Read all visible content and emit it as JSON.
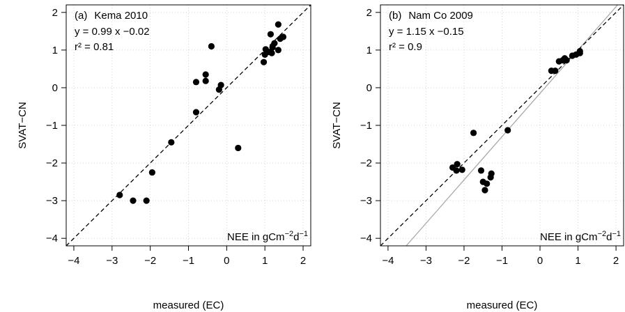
{
  "chart_data": [
    {
      "type": "scatter",
      "panel_label": "(a)",
      "site": "Kema 2010",
      "regression_text": "y =  0.99 x  −0.02",
      "r2_text": "r² =  0.81",
      "regression": {
        "slope": 0.99,
        "intercept": -0.02
      },
      "show_regression_line": false,
      "unit_prefix": "NEE in gCm",
      "unit_exp1": "−2",
      "unit_mid": "d",
      "unit_exp2": "−1",
      "xlabel": "measured (EC)",
      "ylabel": "SVAT−CN",
      "xlim": [
        -4.2,
        2.2
      ],
      "ylim": [
        -4.2,
        2.2
      ],
      "xticks": [
        -4,
        -3,
        -2,
        -1,
        0,
        1,
        2
      ],
      "yticks": [
        -4,
        -3,
        -2,
        -1,
        0,
        1,
        2
      ],
      "xtick_labels": [
        "−4",
        "−3",
        "−2",
        "−1",
        "0",
        "1",
        "2"
      ],
      "ytick_labels": [
        "−4",
        "−3",
        "−2",
        "−1",
        "0",
        "1",
        "2"
      ],
      "grid": true,
      "points": [
        [
          -2.8,
          -2.85
        ],
        [
          -2.45,
          -3.0
        ],
        [
          -2.1,
          -3.0
        ],
        [
          -1.95,
          -2.25
        ],
        [
          -1.45,
          -1.45
        ],
        [
          -0.8,
          -0.65
        ],
        [
          -0.8,
          0.15
        ],
        [
          -0.55,
          0.35
        ],
        [
          -0.55,
          0.18
        ],
        [
          -0.4,
          1.1
        ],
        [
          -0.2,
          -0.05
        ],
        [
          -0.15,
          0.07
        ],
        [
          0.3,
          -1.6
        ],
        [
          0.97,
          0.68
        ],
        [
          1.0,
          0.88
        ],
        [
          1.02,
          1.02
        ],
        [
          1.1,
          0.95
        ],
        [
          1.15,
          1.42
        ],
        [
          1.18,
          0.92
        ],
        [
          1.2,
          1.07
        ],
        [
          1.25,
          1.18
        ],
        [
          1.35,
          1.0
        ],
        [
          1.35,
          1.68
        ],
        [
          1.4,
          1.3
        ],
        [
          1.48,
          1.35
        ]
      ]
    },
    {
      "type": "scatter",
      "panel_label": "(b)",
      "site": "Nam Co 2009",
      "regression_text": "y =  1.15 x  −0.15",
      "r2_text": "r² =  0.9",
      "regression": {
        "slope": 1.15,
        "intercept": -0.15
      },
      "show_regression_line": true,
      "unit_prefix": "NEE in gCm",
      "unit_exp1": "−2",
      "unit_mid": "d",
      "unit_exp2": "−1",
      "xlabel": "measured (EC)",
      "ylabel": "SVAT−CN",
      "xlim": [
        -4.2,
        2.2
      ],
      "ylim": [
        -4.2,
        2.2
      ],
      "xticks": [
        -4,
        -3,
        -2,
        -1,
        0,
        1,
        2
      ],
      "yticks": [
        -4,
        -3,
        -2,
        -1,
        0,
        1,
        2
      ],
      "xtick_labels": [
        "−4",
        "−3",
        "−2",
        "−1",
        "0",
        "1",
        "2"
      ],
      "ytick_labels": [
        "−4",
        "−3",
        "−2",
        "−1",
        "0",
        "1",
        "2"
      ],
      "grid": true,
      "points": [
        [
          -2.3,
          -2.12
        ],
        [
          -2.2,
          -2.2
        ],
        [
          -2.18,
          -2.03
        ],
        [
          -2.05,
          -2.18
        ],
        [
          -1.75,
          -1.2
        ],
        [
          -1.55,
          -2.2
        ],
        [
          -1.5,
          -2.5
        ],
        [
          -1.45,
          -2.72
        ],
        [
          -1.4,
          -2.55
        ],
        [
          -1.3,
          -2.38
        ],
        [
          -1.28,
          -2.28
        ],
        [
          -0.85,
          -1.13
        ],
        [
          0.3,
          0.45
        ],
        [
          0.4,
          0.45
        ],
        [
          0.5,
          0.7
        ],
        [
          0.6,
          0.73
        ],
        [
          0.65,
          0.78
        ],
        [
          0.7,
          0.73
        ],
        [
          0.85,
          0.85
        ],
        [
          0.95,
          0.88
        ],
        [
          1.05,
          0.92
        ],
        [
          1.05,
          0.97
        ]
      ]
    }
  ]
}
